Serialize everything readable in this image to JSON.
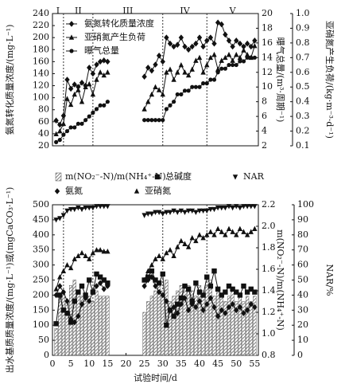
{
  "chart_data": [
    {
      "type": "line",
      "phases": [
        "I",
        "II",
        "III",
        "IV",
        "V"
      ],
      "phase_boundaries": [
        3,
        11,
        30,
        42
      ],
      "x": [
        1,
        2,
        3,
        4,
        5,
        6,
        7,
        8,
        9,
        10,
        11,
        12,
        13,
        14,
        15,
        20,
        25,
        26,
        27,
        28,
        29,
        30,
        31,
        32,
        33,
        34,
        35,
        36,
        37,
        38,
        39,
        40,
        41,
        42,
        43,
        44,
        45,
        46,
        47,
        48,
        49,
        50,
        51,
        52,
        53,
        54,
        55
      ],
      "xlim": [
        0,
        56
      ],
      "ylabel": "氨氮转化质量浓度/(mg·L⁻¹)",
      "ylim": [
        20,
        240
      ],
      "yticks": [
        20,
        40,
        60,
        80,
        100,
        120,
        140,
        160,
        180,
        200,
        220,
        240
      ],
      "y2label": "曝气总量/(m³·周期⁻¹)",
      "y2lim": [
        2,
        20
      ],
      "y2ticks": [
        2,
        4,
        6,
        8,
        10,
        12,
        14,
        16,
        18,
        20
      ],
      "y3label": "亚硝氮产生负荷/(kg·m⁻³·d⁻¹)",
      "y3lim": [
        0.1,
        1
      ],
      "y3ticks": [
        0.1,
        0.2,
        0.3,
        0.4,
        0.5,
        0.6,
        0.7,
        0.8,
        0.9,
        {
          "value": 1,
          "label": "1.0"
        }
      ],
      "series": [
        {
          "name": "氨氮转化质量浓度",
          "marker": "diamond",
          "color": "#111111",
          "axis": "y",
          "values": [
            62,
            55,
            70,
            130,
            115,
            122,
            118,
            125,
            120,
            150,
            140,
            155,
            160,
            162,
            160,
            null,
            135,
            150,
            145,
            155,
            170,
            160,
            200,
            190,
            185,
            188,
            200,
            185,
            180,
            185,
            190,
            200,
            185,
            195,
            200,
            190,
            225,
            222,
            205,
            195,
            185,
            195,
            190,
            185,
            190,
            185,
            195
          ]
        },
        {
          "name": "亚硝氮产生负荷",
          "marker": "triangle",
          "color": "#111111",
          "axis": "y3",
          "values": [
            0.18,
            0.2,
            0.25,
            0.42,
            0.38,
            0.45,
            0.48,
            0.4,
            0.5,
            0.52,
            0.45,
            0.55,
            0.6,
            0.58,
            0.6,
            null,
            0.35,
            0.4,
            0.45,
            0.5,
            0.48,
            0.45,
            0.6,
            0.62,
            0.55,
            0.6,
            0.65,
            0.6,
            0.58,
            0.62,
            0.68,
            0.7,
            0.6,
            0.65,
            0.7,
            0.72,
            0.62,
            0.68,
            0.7,
            0.72,
            0.68,
            0.72,
            0.7,
            0.75,
            0.72,
            0.7,
            0.78
          ]
        },
        {
          "name": "曝气总量",
          "marker": "circle",
          "color": "#111111",
          "axis": "y2",
          "values": [
            2.5,
            2.8,
            3.5,
            4,
            4.5,
            4.5,
            5,
            5,
            5.5,
            6,
            6.5,
            7,
            7.5,
            7.5,
            8,
            null,
            5.5,
            5.5,
            5.5,
            5.5,
            5.5,
            5.5,
            7,
            7.5,
            8,
            9,
            9,
            9.5,
            9.5,
            10,
            10,
            10,
            10.5,
            10.5,
            11,
            11,
            12,
            12.5,
            12.5,
            13,
            13,
            13,
            13.5,
            13.5,
            14,
            14,
            14
          ]
        }
      ]
    },
    {
      "type": "line",
      "phase_boundaries": [
        3,
        11,
        30,
        42
      ],
      "x": [
        1,
        2,
        3,
        4,
        5,
        6,
        7,
        8,
        9,
        10,
        11,
        12,
        13,
        14,
        15,
        20,
        25,
        26,
        27,
        28,
        29,
        30,
        31,
        32,
        33,
        34,
        35,
        36,
        37,
        38,
        39,
        40,
        41,
        42,
        43,
        44,
        45,
        46,
        47,
        48,
        49,
        50,
        51,
        52,
        53,
        54,
        55
      ],
      "xlim": [
        0,
        56
      ],
      "xticks": [
        0,
        5,
        10,
        15,
        20,
        25,
        30,
        35,
        40,
        45,
        50,
        55
      ],
      "xlabel": "试验时间/d",
      "ylabel": "出水基质质量浓度/(mg·L⁻¹)或(mgCaCO₃·L⁻¹)",
      "ylim": [
        0,
        500
      ],
      "yticks": [
        0,
        50,
        100,
        150,
        200,
        250,
        300,
        350,
        400,
        450,
        500
      ],
      "y2label": "m(NO₂⁻-N)/m(NH₄⁺-N)",
      "y2lim": [
        0.8,
        2.2
      ],
      "y2ticks": [
        0.8,
        {
          "value": 1,
          "label": "1.0"
        },
        1.2,
        1.4,
        1.6,
        1.8,
        {
          "value": 2,
          "label": "2.0"
        },
        2.2
      ],
      "y3label": "NAR/%",
      "y3lim": [
        0,
        100
      ],
      "y3ticks": [
        0,
        10,
        20,
        30,
        40,
        50,
        60,
        70,
        80,
        90,
        100
      ],
      "series": [
        {
          "name": "m(NO₂⁻-N)/m(NH₄⁺-N)",
          "type": "bar",
          "marker": "hatch",
          "color": "#555555",
          "axis": "y2",
          "values": [
            1.05,
            1.35,
            1.4,
            1.3,
            1.45,
            1.5,
            1.4,
            1.35,
            1.3,
            1.35,
            1.3,
            1.4,
            1.35,
            1.35,
            1.35,
            null,
            1.2,
            1.3,
            1.35,
            1.4,
            1.45,
            1.4,
            1.5,
            1.3,
            1.35,
            1.4,
            1.45,
            1.4,
            1.45,
            1.4,
            1.35,
            1.45,
            1.4,
            1.45,
            1.5,
            1.35,
            1.4,
            1.35,
            1.3,
            1.35,
            1.4,
            1.3,
            1.35,
            1.3,
            1.35,
            1.3,
            1.35
          ]
        },
        {
          "name": "总碱度",
          "marker": "square",
          "color": "#111111",
          "axis": "y",
          "values": [
            105,
            200,
            150,
            140,
            110,
            180,
            210,
            230,
            200,
            250,
            210,
            270,
            260,
            250,
            240,
            null,
            250,
            260,
            280,
            250,
            240,
            270,
            100,
            150,
            130,
            170,
            190,
            230,
            220,
            180,
            240,
            210,
            200,
            260,
            230,
            280,
            220,
            200,
            210,
            230,
            220,
            210,
            200,
            230,
            210,
            220,
            210
          ]
        },
        {
          "name": "NAR",
          "marker": "down-triangle",
          "color": "#111111",
          "axis": "y3",
          "values": [
            90,
            91,
            93,
            96,
            97,
            97,
            98,
            97,
            98,
            98,
            98,
            99,
            99,
            99,
            99,
            null,
            93,
            94,
            94,
            95,
            95,
            94,
            95,
            95,
            96,
            95,
            96,
            95,
            96,
            96,
            95,
            96,
            96,
            96,
            97,
            97,
            98,
            98,
            98,
            99,
            98,
            99,
            98,
            99,
            99,
            99,
            99
          ]
        },
        {
          "name": "氨氮",
          "marker": "diamond",
          "color": "#111111",
          "axis": "y",
          "values": [
            200,
            230,
            210,
            180,
            120,
            110,
            130,
            170,
            190,
            180,
            210,
            230,
            240,
            220,
            230,
            null,
            230,
            250,
            260,
            230,
            210,
            200,
            180,
            150,
            160,
            140,
            170,
            190,
            150,
            170,
            160,
            180,
            150,
            170,
            190,
            160,
            130,
            150,
            140,
            160,
            170,
            150,
            160,
            140,
            150,
            170,
            160
          ]
        },
        {
          "name": "亚硝氮",
          "marker": "triangle",
          "color": "#111111",
          "axis": "y",
          "values": [
            220,
            260,
            280,
            300,
            290,
            320,
            330,
            340,
            330,
            320,
            340,
            350,
            350,
            345,
            345,
            null,
            250,
            280,
            300,
            320,
            330,
            320,
            340,
            350,
            330,
            360,
            380,
            370,
            360,
            390,
            380,
            400,
            390,
            400,
            410,
            400,
            420,
            410,
            400,
            420,
            410,
            400,
            420,
            410,
            400,
            410,
            420
          ]
        }
      ]
    }
  ]
}
